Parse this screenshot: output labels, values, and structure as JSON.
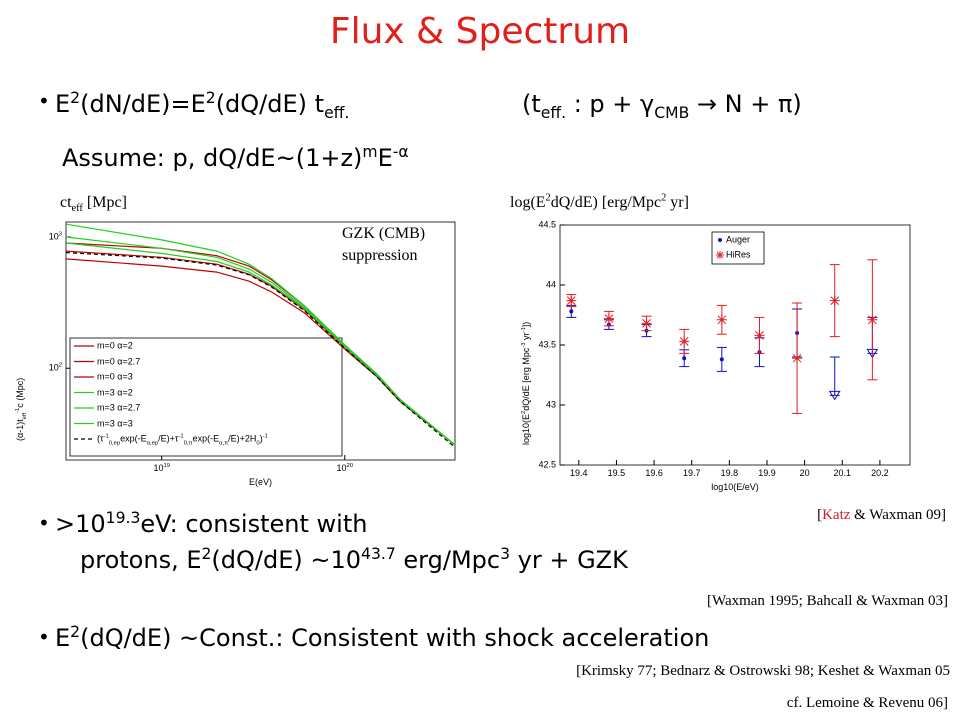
{
  "title": "Flux & Spectrum",
  "bullets": [
    {
      "text": "E<sup>2</sup>(dN/dE)=E<sup>2</sup>(dQ/dE) t<sub>eff.</sub>",
      "aside": "(t<sub>eff.</sub> : p + γ<sub>CMB</sub> → N + π)",
      "more": "Assume: p, dQ/dE~(1+z)<sup>m</sup>E<sup>-α</sup>"
    },
    {
      "text": "&gt;10<sup>19.3</sup>eV: consistent with",
      "more": "protons, E<sup>2</sup>(dQ/dE) ~10<sup>43.7</sup> erg/Mpc<sup>3</sup> yr + GZK"
    },
    {
      "text": "E<sup>2</sup>(dQ/dE) ~Const.: Consistent with shock acceleration"
    }
  ],
  "citations": [
    "[<span style=\"color:#d02020\">Katz</span> &amp; Waxman 09]",
    "[Waxman 1995; Bahcall &amp; Waxman 03]",
    "[Krimsky  77; Bednarz &amp; Ostrowski 98; Keshet &amp; Waxman 05",
    "cf. Lemoine &amp; Revenu 06]"
  ],
  "chart_data": [
    {
      "type": "line",
      "caption": "ct<sub>eff</sub> [Mpc]",
      "xlabel": "E(eV)",
      "ylabel": "(α-1)t<sub>eff</sub><sup>-1</sup>c (Mpc)",
      "log_x": true,
      "log_y": true,
      "annotation": [
        "GZK (CMB)",
        "suppression"
      ],
      "xlim": [
        3e+18,
        4e+20
      ],
      "ylim": [
        20,
        1300
      ],
      "xticks": [
        {
          "value": 1e+19,
          "label": "10<sup>19</sup>"
        },
        {
          "value": 1e+20,
          "label": "10<sup>20</sup>"
        }
      ],
      "yticks": [
        {
          "value": 100,
          "label": "10<sup>2</sup>"
        },
        {
          "value": 1000,
          "label": "10<sup>3</sup>"
        }
      ],
      "legend": "lower left",
      "x": [
        3e+18,
        1e+19,
        2e+19,
        3e+19,
        4e+19,
        6e+19,
        1e+20,
        1.5e+20,
        2e+20,
        4e+20
      ],
      "series": [
        {
          "name": "m=0 α=2",
          "color": "#c00000",
          "values": [
            900,
            820,
            720,
            600,
            470,
            300,
            150,
            90,
            58,
            26
          ]
        },
        {
          "name": "m=0 α=2.7",
          "color": "#c00000",
          "values": [
            780,
            700,
            620,
            520,
            420,
            280,
            145,
            88,
            57,
            26
          ]
        },
        {
          "name": "m=0 α=3",
          "color": "#c00000",
          "values": [
            680,
            600,
            540,
            460,
            380,
            265,
            140,
            86,
            56,
            26
          ]
        },
        {
          "name": "m=3 α=2",
          "color": "#22d022",
          "values": [
            1250,
            950,
            780,
            620,
            480,
            300,
            150,
            90,
            58,
            26
          ]
        },
        {
          "name": "m=3 α=2.7",
          "color": "#22d022",
          "values": [
            1000,
            820,
            700,
            570,
            450,
            290,
            148,
            89,
            57,
            26
          ]
        },
        {
          "name": "m=3 α=3",
          "color": "#22d022",
          "values": [
            900,
            750,
            650,
            540,
            430,
            285,
            146,
            88,
            57,
            26
          ]
        },
        {
          "name": "(τ<sup>-1</sup><sub>0,ep</sub>exp(-E<sub>α,ep</sub>/E)+τ<sup>-1</sup><sub>0,π</sub>exp(-E<sub>α,π</sub>/E)+2H<sub>0</sub>)<sup>-1</sup>",
          "color": "#000000",
          "dashed": true,
          "values": [
            760,
            690,
            610,
            515,
            415,
            275,
            142,
            86,
            56,
            25
          ]
        }
      ]
    },
    {
      "type": "scatter",
      "caption": "log(E<sup>2</sup>dQ/dE) [erg/Mpc<sup>2</sup> yr]",
      "xlabel": "log10(E/eV)",
      "ylabel": "log10(E<sup>2</sup>dQ/dE [erg Mpc<sup>-3</sup> yr<sup>-1</sup>])",
      "xlim": [
        19.35,
        20.28
      ],
      "ylim": [
        42.5,
        44.5
      ],
      "xticks": [
        19.4,
        19.5,
        19.6,
        19.7,
        19.8,
        19.9,
        20,
        20.1,
        20.2
      ],
      "yticks": [
        42.5,
        43,
        43.5,
        44,
        44.5
      ],
      "legend": "upper right",
      "series": [
        {
          "name": "Auger",
          "color": "#1010c0",
          "marker": "dot",
          "x": [
            19.38,
            19.48,
            19.58,
            19.68,
            19.78,
            19.88,
            19.98,
            20.08,
            20.18
          ],
          "values": [
            43.78,
            43.67,
            43.62,
            43.39,
            43.38,
            43.44,
            43.6,
            43.08,
            43.43
          ],
          "errors": [
            0.05,
            0.04,
            0.05,
            0.07,
            0.1,
            0.12,
            0.2,
            0.32,
            0.3
          ],
          "upper_limit": [
            false,
            false,
            false,
            false,
            false,
            false,
            false,
            true,
            true
          ]
        },
        {
          "name": "HiRes",
          "color": "#e02020",
          "marker": "star",
          "x": [
            19.38,
            19.48,
            19.58,
            19.68,
            19.78,
            19.88,
            19.98,
            20.08,
            20.18
          ],
          "values": [
            43.87,
            43.72,
            43.68,
            43.53,
            43.71,
            43.58,
            43.39,
            43.87,
            43.71
          ],
          "errors": [
            0.05,
            0.06,
            0.06,
            0.1,
            0.12,
            0.15,
            0.46,
            0.3,
            0.5
          ],
          "upper_limit": [
            false,
            false,
            false,
            false,
            false,
            false,
            false,
            false,
            false
          ]
        }
      ]
    }
  ]
}
